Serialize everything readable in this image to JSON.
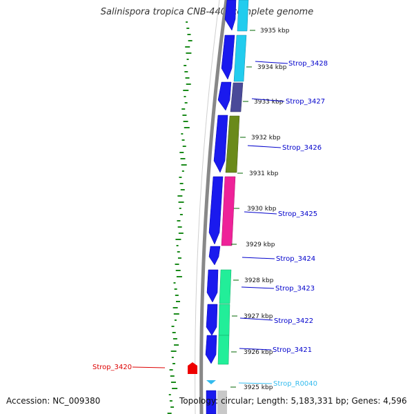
{
  "title": "Salinispora tropica CNB-440, complete genome",
  "accession": "Accession: NC_009380",
  "summary": "Topology: circular; Length: 5,183,331 bp; Genes: 4,596",
  "kbp_ticks": [
    "3935 kbp",
    "3934 kbp",
    "3933 kbp",
    "3932 kbp",
    "3931 kbp",
    "3930 kbp",
    "3929 kbp",
    "3928 kbp",
    "3927 kbp",
    "3926 kbp",
    "3925 kbp"
  ],
  "genes": [
    {
      "label": "Strop_3428",
      "color": "#0000cc"
    },
    {
      "label": "Strop_3427",
      "color": "#0000cc"
    },
    {
      "label": "Strop_3426",
      "color": "#0000cc"
    },
    {
      "label": "Strop_3425",
      "color": "#0000cc"
    },
    {
      "label": "Strop_3424",
      "color": "#0000cc"
    },
    {
      "label": "Strop_3423",
      "color": "#0000cc"
    },
    {
      "label": "Strop_3422",
      "color": "#0000cc"
    },
    {
      "label": "Strop_3421",
      "color": "#0000cc"
    },
    {
      "label": "Strop_R0040",
      "color": "#33bbee"
    },
    {
      "label": "Strop_3420",
      "color": "#dd0000"
    }
  ],
  "colors": {
    "backbone": "#888888",
    "gene_arrow": "#1a1aee",
    "gc_skew": "#1a8a1a",
    "cog_cyan": "#22ccee",
    "cog_slate": "#4a4a99",
    "cog_olive": "#6a8a1a",
    "cog_pink": "#ee2299",
    "cog_mint": "#22ee99"
  }
}
